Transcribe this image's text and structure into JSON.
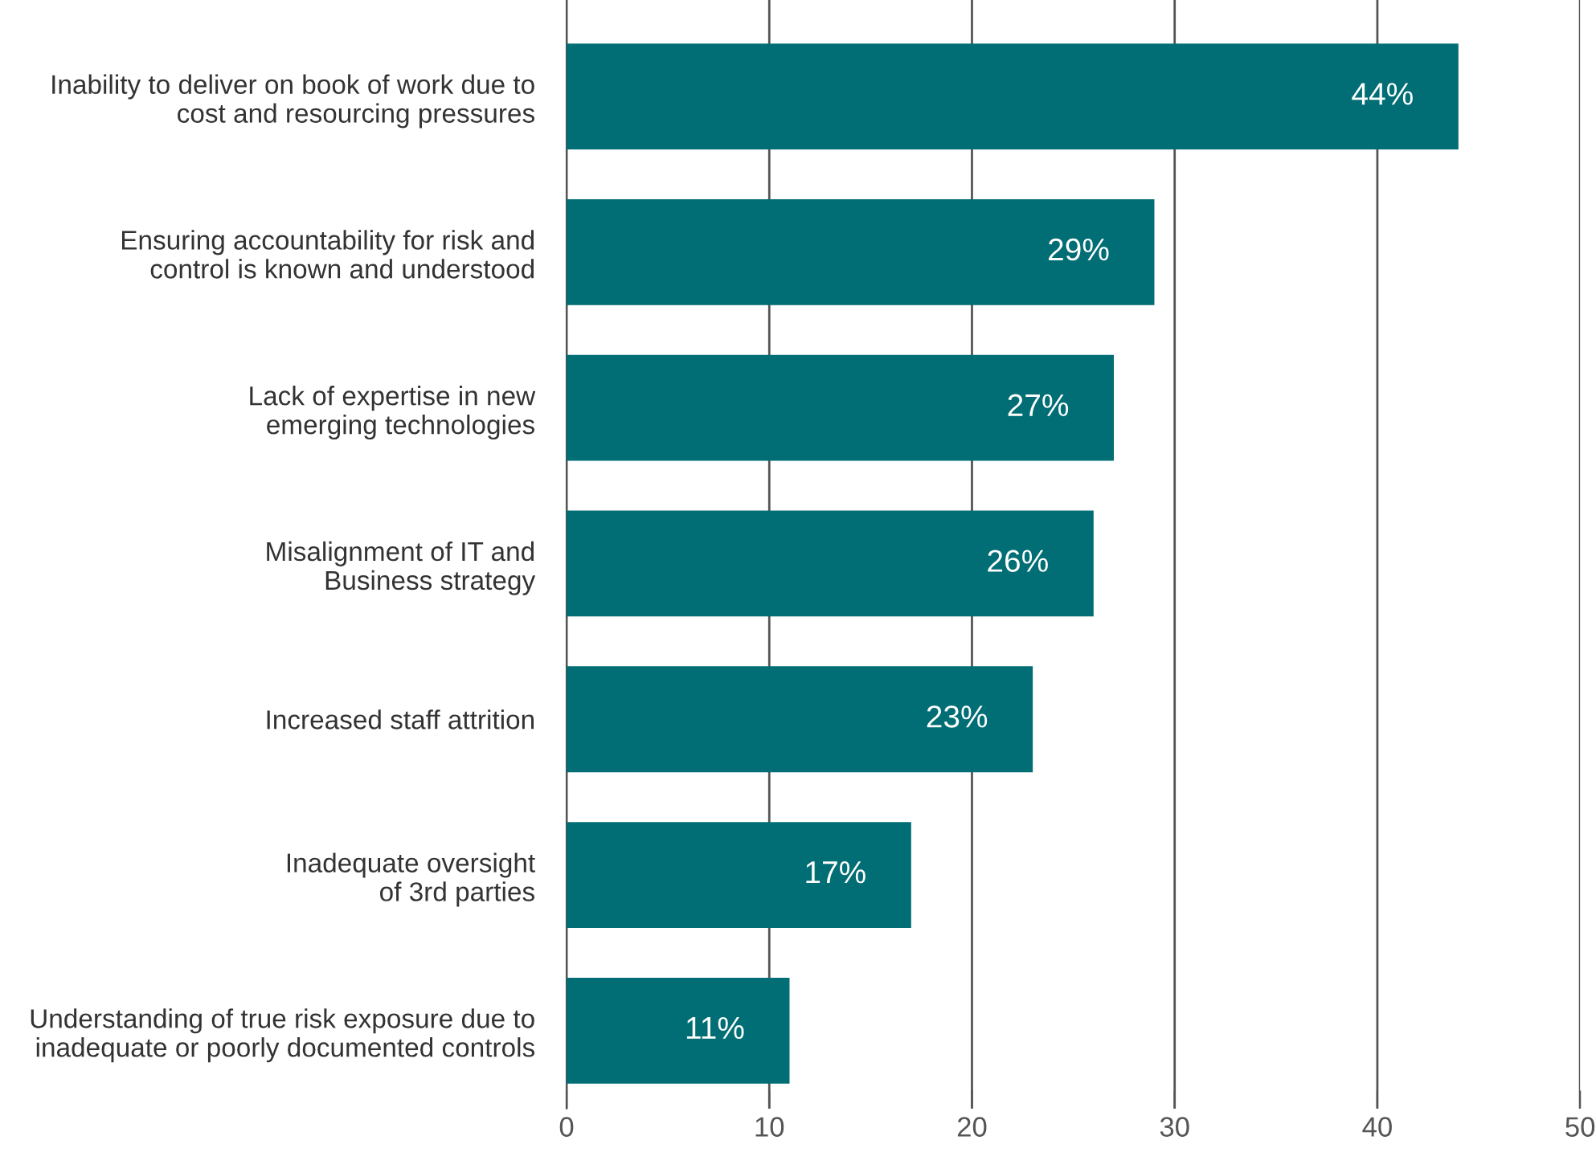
{
  "chart_data": {
    "type": "bar",
    "orientation": "horizontal",
    "categories": [
      "Inability to deliver on book of work due to\ncost and resourcing pressures",
      "Ensuring accountability for risk and\ncontrol is known and understood",
      "Lack of expertise in new\nemerging technologies",
      "Misalignment of IT and\nBusiness strategy",
      "Increased staff attrition",
      "Inadequate oversight\nof 3rd parties",
      "Understanding of true risk exposure due to\ninadequate or poorly documented controls"
    ],
    "values": [
      44,
      29,
      27,
      26,
      23,
      17,
      11
    ],
    "value_labels": [
      "44%",
      "29%",
      "27%",
      "26%",
      "23%",
      "17%",
      "11%"
    ],
    "color": "#006e74",
    "xlim": [
      0,
      50
    ],
    "xticks": [
      0,
      10,
      20,
      30,
      40,
      50
    ],
    "grid": "x",
    "legend": false
  }
}
